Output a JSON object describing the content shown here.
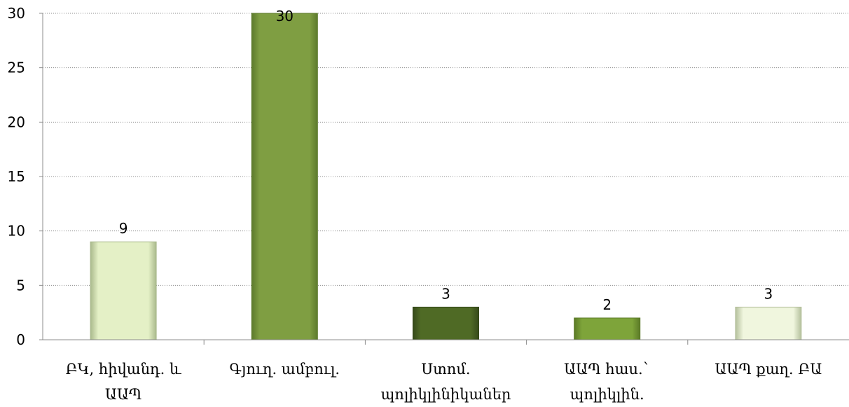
{
  "chart_data": {
    "type": "bar",
    "title": "",
    "xlabel": "",
    "ylabel": "",
    "ylim": [
      0,
      30
    ],
    "yticks": [
      0,
      5,
      10,
      15,
      20,
      25,
      30
    ],
    "grid": true,
    "legend": "none",
    "categories": [
      [
        "ԲԿ, հիվանդ. և",
        "ԱԱՊ"
      ],
      [
        "Գյուղ. ամբուլ."
      ],
      [
        "Ստոմ.",
        "պոլիկլինիկաներ"
      ],
      [
        "ԱԱՊ  հաս.`",
        "պոլիկլին."
      ],
      [
        "ԱԱՊ քաղ. ԲԱ"
      ]
    ],
    "values": [
      9,
      30,
      3,
      2,
      3
    ],
    "bar_colors": [
      "#e4f0c6",
      "#7f9e42",
      "#4f6a25",
      "#7ea43a",
      "#f0f6de"
    ],
    "bar_edge_colors": [
      "#a9b98c",
      "#5c7a2c",
      "#36491a",
      "#5b7a27",
      "#b4c09c"
    ]
  }
}
